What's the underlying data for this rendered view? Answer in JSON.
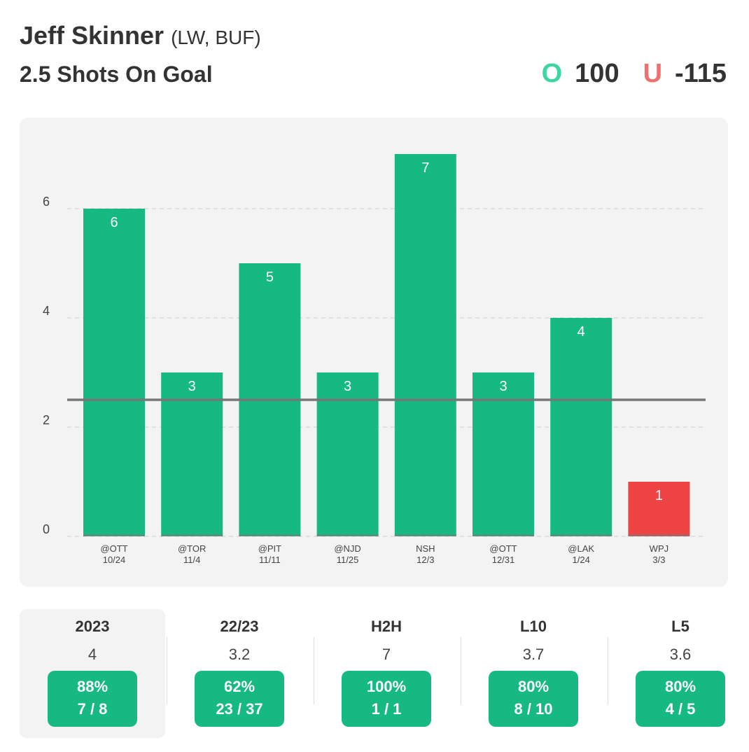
{
  "header": {
    "player_name": "Jeff Skinner",
    "player_pos": "(LW, BUF)",
    "prop_title": "2.5 Shots On Goal",
    "over_label": "O",
    "over_odds": "100",
    "under_label": "U",
    "under_odds": "-115"
  },
  "colors": {
    "over_bar": "#15b981",
    "under_bar": "#ef4444",
    "line": "#777777",
    "over_letter": "#3ed6a0",
    "under_letter": "#f07070"
  },
  "chart_data": {
    "type": "bar",
    "line_value": 2.5,
    "ylim": [
      0,
      7
    ],
    "yticks": [
      0,
      2,
      4,
      6
    ],
    "grid": true,
    "categories": [
      "@OTT",
      "@TOR",
      "@PIT",
      "@NJD",
      "NSH",
      "@OTT",
      "@LAK",
      "WPJ"
    ],
    "dates": [
      "10/24",
      "11/4",
      "11/11",
      "11/25",
      "12/3",
      "12/31",
      "1/24",
      "3/3"
    ],
    "values": [
      6,
      3,
      5,
      3,
      7,
      3,
      4,
      1
    ]
  },
  "stats": [
    {
      "label": "2023",
      "avg": "4",
      "pct": "88%",
      "frac": "7 / 8",
      "active": true
    },
    {
      "label": "22/23",
      "avg": "3.2",
      "pct": "62%",
      "frac": "23 / 37",
      "active": false
    },
    {
      "label": "H2H",
      "avg": "7",
      "pct": "100%",
      "frac": "1 / 1",
      "active": false
    },
    {
      "label": "L10",
      "avg": "3.7",
      "pct": "80%",
      "frac": "8 / 10",
      "active": false
    },
    {
      "label": "L5",
      "avg": "3.6",
      "pct": "80%",
      "frac": "4 / 5",
      "active": false
    }
  ]
}
